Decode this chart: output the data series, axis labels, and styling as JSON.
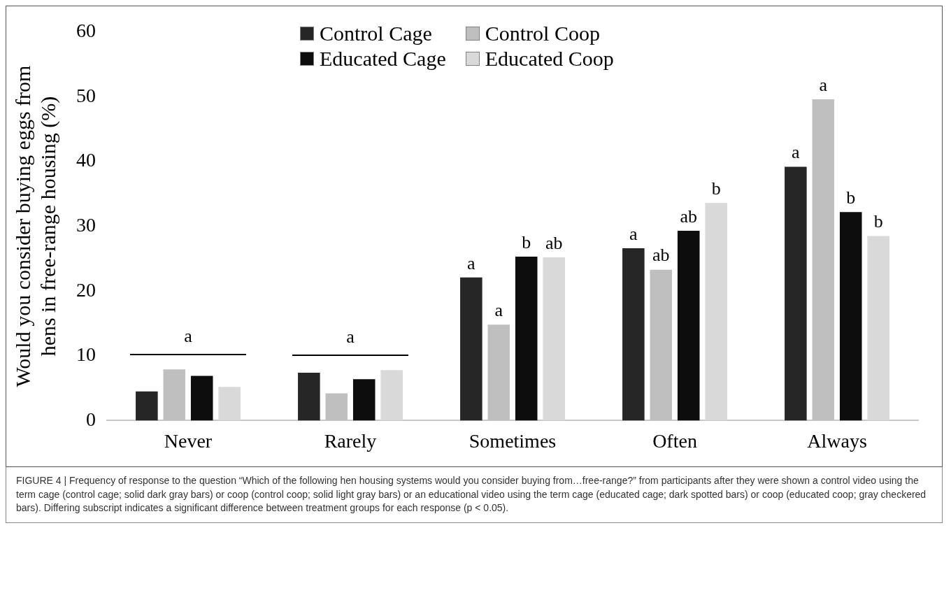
{
  "chart_data": {
    "type": "bar",
    "ylabel": "Would you consider buying eggs from hens in free-range housing (%)",
    "categories": [
      "Never",
      "Rarely",
      "Sometimes",
      "Often",
      "Always"
    ],
    "series": [
      {
        "name": "Control Cage",
        "color": "#262626",
        "values": [
          4.5,
          7.4,
          22.1,
          26.6,
          39.2
        ],
        "value_labels": [
          null,
          null,
          "a",
          "a",
          "a"
        ]
      },
      {
        "name": "Control Coop",
        "color": "#bfbfbf",
        "values": [
          7.9,
          4.2,
          14.8,
          23.3,
          49.6
        ],
        "value_labels": [
          null,
          null,
          "a",
          "ab",
          "a"
        ]
      },
      {
        "name": "Educated Cage",
        "color": "#0d0d0d",
        "values": [
          6.9,
          6.4,
          25.3,
          29.3,
          32.2
        ],
        "value_labels": [
          null,
          null,
          "b",
          "ab",
          "b"
        ]
      },
      {
        "name": "Educated Coop",
        "color": "#d9d9d9",
        "values": [
          5.2,
          7.8,
          25.2,
          33.6,
          28.5
        ],
        "value_labels": [
          null,
          null,
          "ab",
          "b",
          "b"
        ]
      }
    ],
    "ylim": [
      0,
      60
    ],
    "yticks": [
      0,
      10,
      20,
      30,
      40,
      50,
      60
    ],
    "grid": false,
    "legend": "top",
    "annotations": [
      "a",
      "a",
      "FIGURE 4 | Frequency of response to the question “Which of the following hen housing systems would you consider buying from…free-range?” from participants after they were shown a control video using the term cage (control cage; solid dark gray bars) or coop (control coop; solid light gray bars) or an educational video using the term cage (educated cage; dark spotted bars) or coop (educated coop; gray checkered bars). Differing subscript indicates a significant difference between treatment groups for each response (p < 0.05)."
    ]
  }
}
